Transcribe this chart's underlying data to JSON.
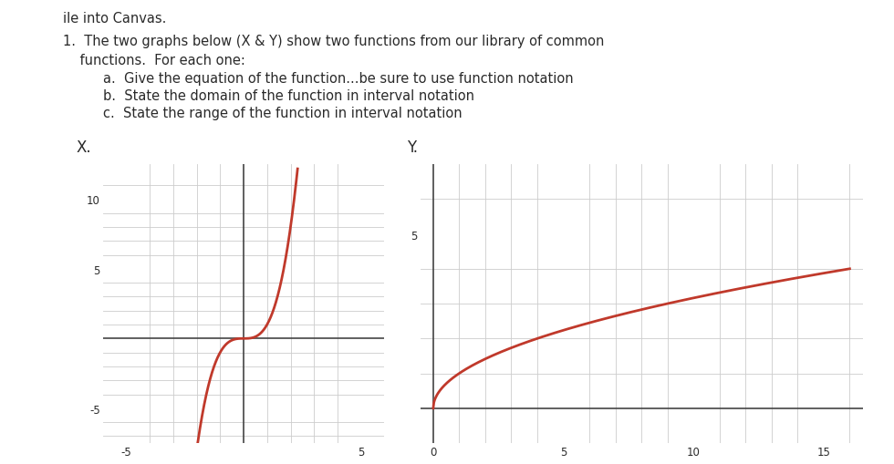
{
  "background_color": "#ffffff",
  "text_color": "#2a2a2a",
  "curve_color": "#c0392b",
  "grid_color": "#cccccc",
  "axis_color": "#444444",
  "graph_x": {
    "xlim": [
      -6,
      6
    ],
    "ylim": [
      -7.5,
      12.5
    ],
    "xticks": [
      -5,
      0,
      5
    ],
    "yticks": [
      -5,
      0,
      5,
      10
    ]
  },
  "graph_y": {
    "xlim": [
      -0.5,
      16.5
    ],
    "ylim": [
      -1.0,
      7.0
    ],
    "xticks": [
      0,
      5,
      10,
      15
    ],
    "yticks": [
      0,
      5
    ]
  }
}
